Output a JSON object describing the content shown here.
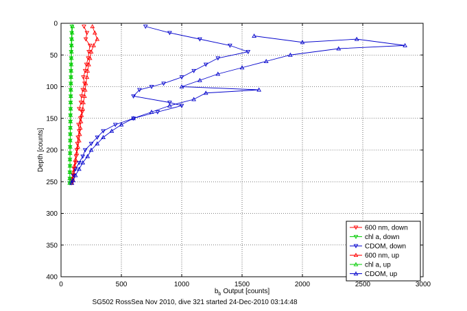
{
  "chart_data": {
    "type": "scatter",
    "title": "",
    "caption": "SG502 RossSea Nov 2010, dive 321 started 24-Dec-2010 03:14:48",
    "xlabel": "Output [counts]",
    "xlabel_prefix": "b",
    "xlabel_subscript": "b",
    "ylabel": "Depth [counts]",
    "xlim": [
      0,
      3000
    ],
    "ylim": [
      0,
      400
    ],
    "y_reversed": true,
    "grid": true,
    "legend_position": "lower-right",
    "x_ticks": [
      0,
      500,
      1000,
      1500,
      2000,
      2500,
      3000
    ],
    "y_ticks": [
      0,
      50,
      100,
      150,
      200,
      250,
      300,
      350,
      400
    ],
    "series": [
      {
        "name": "600 nm, down",
        "color": "#ff0000",
        "marker": "triangle-down",
        "x": [
          190,
          215,
          205,
          240,
          230,
          225,
          210,
          200,
          185,
          195,
          180,
          170,
          165,
          150,
          175,
          160,
          145,
          150,
          140,
          135,
          130,
          125,
          120,
          110,
          105,
          100,
          95,
          90
        ],
        "y": [
          5,
          15,
          25,
          35,
          45,
          55,
          65,
          75,
          85,
          95,
          105,
          115,
          125,
          135,
          140,
          150,
          160,
          170,
          180,
          190,
          200,
          210,
          220,
          230,
          240,
          245,
          250,
          252
        ]
      },
      {
        "name": "chl a, down",
        "color": "#00cc00",
        "marker": "triangle-down",
        "x": [
          90,
          88,
          86,
          85,
          84,
          84,
          83,
          82,
          82,
          81,
          80,
          80,
          79,
          79,
          78,
          78,
          77,
          76,
          76,
          75,
          75,
          74,
          74,
          73,
          73,
          72
        ],
        "y": [
          5,
          15,
          25,
          35,
          45,
          55,
          65,
          75,
          85,
          95,
          105,
          115,
          125,
          135,
          145,
          155,
          165,
          175,
          185,
          195,
          205,
          215,
          225,
          235,
          245,
          252
        ]
      },
      {
        "name": "CDOM, down",
        "color": "#0000cc",
        "marker": "triangle-down",
        "x": [
          700,
          900,
          1150,
          1400,
          1550,
          1300,
          1200,
          1100,
          1000,
          850,
          750,
          650,
          600,
          900,
          1000,
          800,
          600,
          450,
          350,
          300,
          250,
          200,
          180,
          150,
          120,
          100,
          90,
          80
        ],
        "y": [
          5,
          15,
          25,
          35,
          45,
          55,
          65,
          75,
          85,
          95,
          100,
          105,
          115,
          125,
          130,
          140,
          150,
          160,
          170,
          180,
          190,
          200,
          210,
          220,
          230,
          240,
          248,
          252
        ]
      },
      {
        "name": "600 nm, up",
        "color": "#ff0000",
        "marker": "triangle-up",
        "x": [
          260,
          280,
          300,
          270,
          250,
          240,
          230,
          220,
          215,
          205,
          200,
          195,
          185,
          180,
          170,
          165,
          160,
          155,
          150,
          140,
          130,
          120,
          110,
          100,
          95,
          90
        ],
        "y": [
          5,
          15,
          25,
          35,
          45,
          55,
          65,
          75,
          85,
          95,
          105,
          115,
          125,
          135,
          145,
          155,
          165,
          175,
          185,
          195,
          205,
          215,
          225,
          235,
          245,
          252
        ]
      },
      {
        "name": "chl a, up",
        "color": "#00cc00",
        "marker": "triangle-up",
        "x": [
          95,
          92,
          90,
          88,
          87,
          86,
          85,
          84,
          83,
          82,
          82,
          81,
          80,
          80,
          79,
          78,
          78,
          77,
          76,
          76,
          75,
          74,
          74,
          73,
          72,
          72
        ],
        "y": [
          5,
          15,
          25,
          35,
          45,
          55,
          65,
          75,
          85,
          95,
          105,
          115,
          125,
          135,
          145,
          155,
          165,
          175,
          185,
          195,
          205,
          215,
          225,
          235,
          245,
          252
        ]
      },
      {
        "name": "CDOM, up",
        "color": "#0000cc",
        "marker": "triangle-up",
        "x": [
          1600,
          2000,
          2450,
          2850,
          2300,
          1900,
          1700,
          1500,
          1300,
          1150,
          1000,
          1640,
          1200,
          1100,
          900,
          750,
          600,
          500,
          420,
          350,
          300,
          250,
          220,
          180,
          150,
          120,
          100,
          90
        ],
        "y": [
          20,
          30,
          25,
          35,
          40,
          50,
          60,
          70,
          80,
          90,
          100,
          105,
          110,
          120,
          130,
          140,
          150,
          160,
          170,
          180,
          190,
          200,
          210,
          220,
          230,
          240,
          248,
          252
        ]
      }
    ]
  }
}
